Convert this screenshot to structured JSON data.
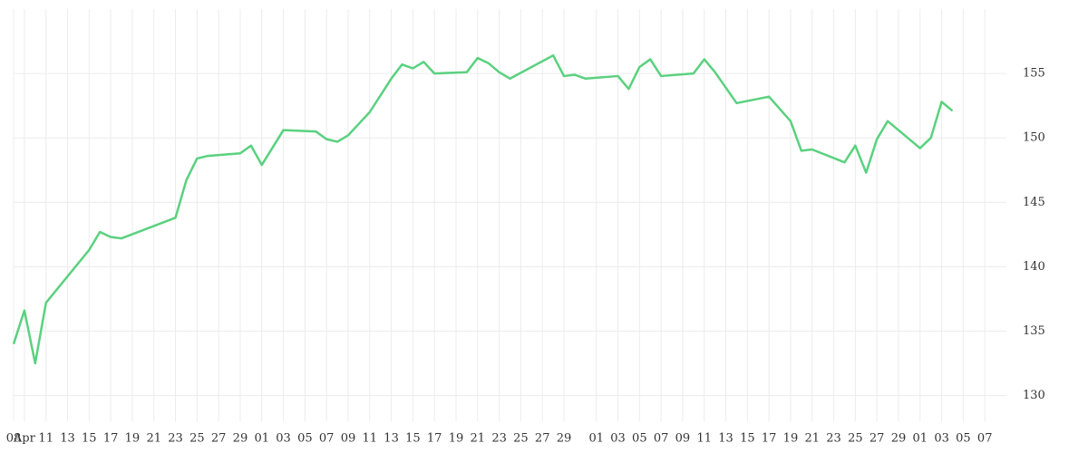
{
  "chart_data": {
    "type": "line",
    "color": "#5ad17f",
    "grid": true,
    "x": [
      "04-08",
      "04-09",
      "04-10",
      "04-11",
      "04-15",
      "04-16",
      "04-17",
      "04-18",
      "04-23",
      "04-24",
      "04-25",
      "04-26",
      "04-29",
      "04-30",
      "05-01",
      "05-03",
      "05-06",
      "05-07",
      "05-08",
      "05-09",
      "05-10",
      "05-11",
      "05-12",
      "05-13",
      "05-14",
      "05-15",
      "05-16",
      "05-17",
      "05-20",
      "05-21",
      "05-22",
      "05-23",
      "05-24",
      "05-28",
      "05-29",
      "05-30",
      "05-31",
      "06-03",
      "06-04",
      "06-05",
      "06-06",
      "06-07",
      "06-10",
      "06-11",
      "06-12",
      "06-14",
      "06-17",
      "06-19",
      "06-20",
      "06-21",
      "06-24",
      "06-25",
      "06-26",
      "06-27",
      "06-28",
      "07-01",
      "07-02",
      "07-03",
      "07-04"
    ],
    "values": [
      134.0,
      136.6,
      132.5,
      137.2,
      141.3,
      142.7,
      142.3,
      142.2,
      143.8,
      146.7,
      148.4,
      148.6,
      148.8,
      149.4,
      147.9,
      150.6,
      150.5,
      149.9,
      149.7,
      150.2,
      151.1,
      152.0,
      153.3,
      154.6,
      155.7,
      155.4,
      155.9,
      155.0,
      155.1,
      156.2,
      155.8,
      155.1,
      154.6,
      156.4,
      154.8,
      154.9,
      154.6,
      154.8,
      153.8,
      155.5,
      156.1,
      154.8,
      155.0,
      156.1,
      155.1,
      152.7,
      153.2,
      151.3,
      149.0,
      149.1,
      148.1,
      149.4,
      147.3,
      149.9,
      151.3,
      149.2,
      150.0,
      152.8,
      152.1
    ],
    "xlim": [
      "04-08",
      "07-09"
    ],
    "xticks": [
      {
        "value": "04-08",
        "label": "08"
      },
      {
        "value": "04-09",
        "label": "Apr"
      },
      {
        "value": "04-11",
        "label": "11"
      },
      {
        "value": "04-13",
        "label": "13"
      },
      {
        "value": "04-15",
        "label": "15"
      },
      {
        "value": "04-17",
        "label": "17"
      },
      {
        "value": "04-19",
        "label": "19"
      },
      {
        "value": "04-21",
        "label": "21"
      },
      {
        "value": "04-23",
        "label": "23"
      },
      {
        "value": "04-25",
        "label": "25"
      },
      {
        "value": "04-27",
        "label": "27"
      },
      {
        "value": "04-29",
        "label": "29"
      },
      {
        "value": "05-01",
        "label": "01"
      },
      {
        "value": "05-03",
        "label": "03"
      },
      {
        "value": "05-05",
        "label": "05"
      },
      {
        "value": "05-07",
        "label": "07"
      },
      {
        "value": "05-09",
        "label": "09"
      },
      {
        "value": "05-11",
        "label": "11"
      },
      {
        "value": "05-13",
        "label": "13"
      },
      {
        "value": "05-15",
        "label": "15"
      },
      {
        "value": "05-17",
        "label": "17"
      },
      {
        "value": "05-19",
        "label": "19"
      },
      {
        "value": "05-21",
        "label": "21"
      },
      {
        "value": "05-23",
        "label": "23"
      },
      {
        "value": "05-25",
        "label": "25"
      },
      {
        "value": "05-27",
        "label": "27"
      },
      {
        "value": "05-29",
        "label": "29"
      },
      {
        "value": "06-01",
        "label": "01"
      },
      {
        "value": "06-03",
        "label": "03"
      },
      {
        "value": "06-05",
        "label": "05"
      },
      {
        "value": "06-07",
        "label": "07"
      },
      {
        "value": "06-09",
        "label": "09"
      },
      {
        "value": "06-11",
        "label": "11"
      },
      {
        "value": "06-13",
        "label": "13"
      },
      {
        "value": "06-15",
        "label": "15"
      },
      {
        "value": "06-17",
        "label": "17"
      },
      {
        "value": "06-19",
        "label": "19"
      },
      {
        "value": "06-21",
        "label": "21"
      },
      {
        "value": "06-23",
        "label": "23"
      },
      {
        "value": "06-25",
        "label": "25"
      },
      {
        "value": "06-27",
        "label": "27"
      },
      {
        "value": "06-29",
        "label": "29"
      },
      {
        "value": "07-01",
        "label": "01"
      },
      {
        "value": "07-03",
        "label": "03"
      },
      {
        "value": "07-05",
        "label": "05"
      },
      {
        "value": "07-07",
        "label": "07"
      }
    ],
    "ylim": [
      128,
      160
    ],
    "yticks": [
      130,
      135,
      140,
      145,
      150,
      155
    ]
  }
}
